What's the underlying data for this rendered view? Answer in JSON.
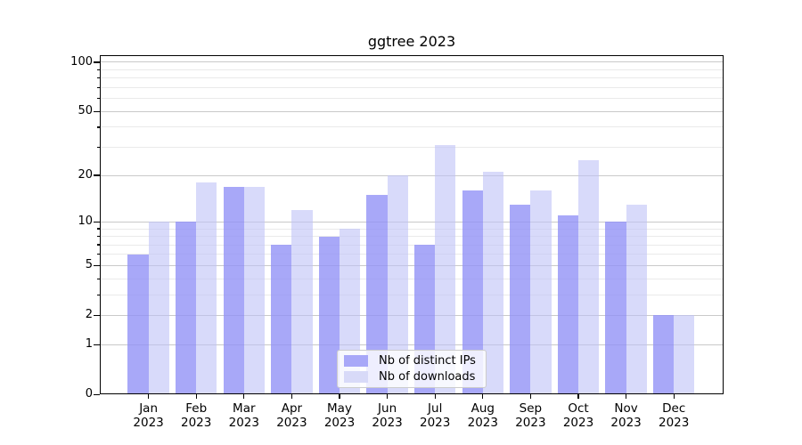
{
  "title": "ggtree 2023",
  "chart_data": {
    "type": "bar",
    "title": "ggtree 2023",
    "categories": [
      "Jan",
      "Feb",
      "Mar",
      "Apr",
      "May",
      "Jun",
      "Jul",
      "Aug",
      "Sep",
      "Oct",
      "Nov",
      "Dec"
    ],
    "year_label": "2023",
    "series": [
      {
        "name": "Nb of distinct IPs",
        "color": "#a8a8f8",
        "fill": "rgba(146,146,246,0.8)",
        "values": [
          6,
          10,
          17,
          7,
          8,
          15,
          7,
          16,
          13,
          11,
          10,
          2
        ]
      },
      {
        "name": "Nb of downloads",
        "color": "#d8daf8",
        "fill": "rgba(190,193,247,0.6)",
        "values": [
          10,
          18,
          17,
          12,
          9,
          20,
          31,
          21,
          16,
          25,
          13,
          2
        ]
      }
    ],
    "y_axis": {
      "scale": "log10(v+1)",
      "ticks": [
        0,
        1,
        2,
        5,
        10,
        20,
        50,
        100
      ],
      "minor_ticks": [
        3,
        4,
        6,
        7,
        8,
        9,
        30,
        40,
        60,
        70,
        80,
        90
      ],
      "ylim": [
        0,
        110
      ]
    },
    "xlabel": "",
    "ylabel": "",
    "grid": true,
    "legend_position": "bottom-center"
  },
  "colors": {
    "bar_dark": "#a8a8f8",
    "bar_light": "#d8daf8",
    "major_grid": "#c9c9c9",
    "minor_grid": "#eaeaea",
    "axis": "#000000",
    "legend_border": "#cccccc",
    "background": "#ffffff"
  }
}
